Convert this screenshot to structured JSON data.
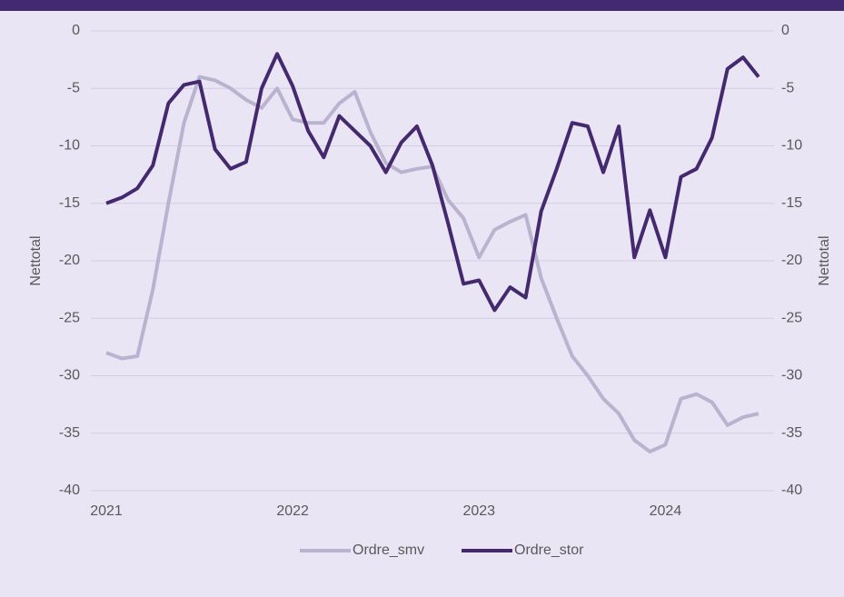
{
  "chart_data": {
    "type": "line",
    "categories": [
      "2021",
      null,
      null,
      null,
      null,
      null,
      null,
      null,
      null,
      null,
      null,
      null,
      "2022",
      null,
      null,
      null,
      null,
      null,
      null,
      null,
      null,
      null,
      null,
      null,
      "2023",
      null,
      null,
      null,
      null,
      null,
      null,
      null,
      null,
      null,
      null,
      null,
      "2024",
      null,
      null,
      null,
      null,
      null,
      null
    ],
    "series": [
      {
        "name": "Ordre_smv",
        "color": "#bab3d0",
        "values": [
          -28,
          -28.5,
          -28.3,
          -22.5,
          -15,
          -8,
          -4,
          -4.3,
          -5,
          -6,
          -6.7,
          -5,
          -7.7,
          -8,
          -8,
          -6.3,
          -5.3,
          -8.8,
          -11.5,
          -12.3,
          -12,
          -11.8,
          -14.7,
          -16.3,
          -19.7,
          -17.3,
          -16.6,
          -16,
          -21.5,
          -25,
          -28.3,
          -30,
          -32,
          -33.3,
          -35.6,
          -36.6,
          -36,
          -32,
          -31.6,
          -32.3,
          -34.3,
          -33.6,
          -33.3
        ]
      },
      {
        "name": "Ordre_stor",
        "color": "#45296f",
        "values": [
          -15,
          -14.5,
          -13.7,
          -11.7,
          -6.3,
          -4.7,
          -4.4,
          -10.3,
          -12,
          -11.4,
          -5,
          -2,
          -4.8,
          -8.7,
          -11,
          -7.4,
          -8.7,
          -10,
          -12.3,
          -9.7,
          -8.3,
          -11.7,
          -16.7,
          -22,
          -21.7,
          -24.3,
          -22.3,
          -23.2,
          -15.7,
          -12,
          -8,
          -8.3,
          -12.3,
          -8.3,
          -19.7,
          -15.6,
          -19.7,
          -12.7,
          -12,
          -9.3,
          -3.3,
          -2.3,
          -4
        ]
      }
    ],
    "ylabel": "Nettotal",
    "y2label": "Nettotal",
    "ylim": [
      -40,
      0
    ],
    "yticks": [
      0,
      -5,
      -10,
      -15,
      -20,
      -25,
      -30,
      -35,
      -40
    ],
    "y2lim": [
      -40,
      0
    ],
    "y2ticks": [
      0,
      -5,
      -10,
      -15,
      -20,
      -25,
      -30,
      -35,
      -40
    ],
    "grid": true,
    "legend": "bottom"
  }
}
